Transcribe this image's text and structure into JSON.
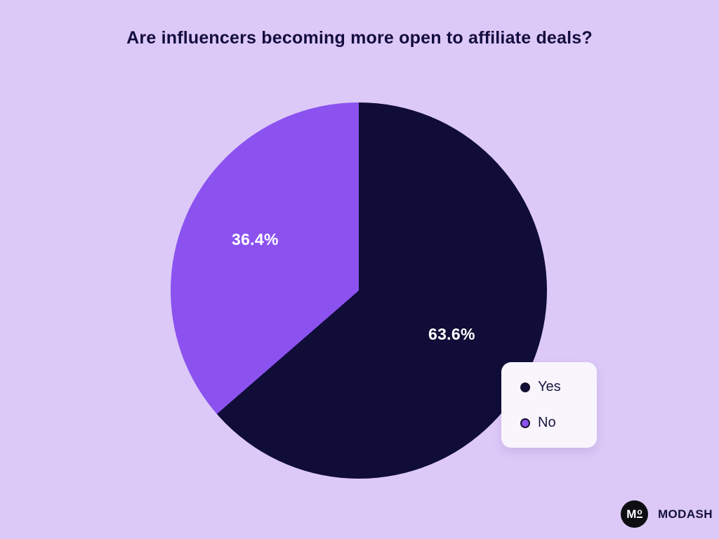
{
  "title": "Are influencers becoming more open to affiliate deals?",
  "chart_data": {
    "type": "pie",
    "title": "Are influencers becoming more open to affiliate deals?",
    "labels": [
      "Yes",
      "No"
    ],
    "values": [
      63.6,
      36.4
    ],
    "colors": [
      "#100d38",
      "#8b52f0"
    ],
    "data_labels": [
      "63.6%",
      "36.4%"
    ],
    "start_angle_deg": 0,
    "direction": "clockwise",
    "legend_position": "bottom-right"
  },
  "slice_labels": {
    "yes": "63.6%",
    "no": "36.4%"
  },
  "legend": {
    "items": [
      {
        "label": "Yes",
        "color": "#100d38"
      },
      {
        "label": "No",
        "color": "#8b52f0"
      }
    ]
  },
  "branding": {
    "monogram_m": "M",
    "monogram_o": "o",
    "name": "MODASH"
  },
  "colors": {
    "background": "#ddc9f8",
    "title_text": "#140d3f",
    "slice_label_text": "#ffffff",
    "legend_background": "#f8f5fd"
  }
}
